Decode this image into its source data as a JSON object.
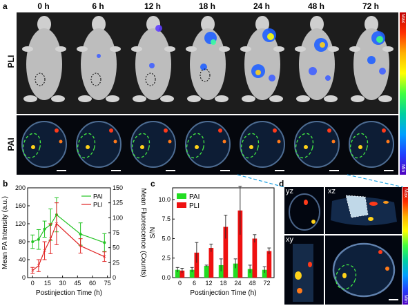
{
  "panels": {
    "a": "a",
    "b": "b",
    "c": "c",
    "d": "d"
  },
  "timepoints": [
    "0 h",
    "6 h",
    "12 h",
    "18 h",
    "24 h",
    "48 h",
    "72 h"
  ],
  "rows": {
    "pli": "PLI",
    "pai": "PAI"
  },
  "colorbar": {
    "max": "Max",
    "min": "Min"
  },
  "panel_d_views": {
    "yz": "yz",
    "xz": "xz",
    "xy": "xy"
  },
  "colors": {
    "pai_green": "#22c322",
    "pli_red": "#e02020",
    "ns_green": "#22dd22",
    "ns_red": "#ee1111",
    "dash_green": "#44ee44",
    "link_blue": "#1ea0e0"
  },
  "chart_data": [
    {
      "type": "line",
      "panel": "b",
      "xlabel": "Postinjection Time (h)",
      "ylabel": "Mean PA Intensity (a.u.)",
      "ylabel_right": "Mean Fluorescence (Counts)",
      "xlim": [
        -5,
        78
      ],
      "ylim": [
        0,
        200
      ],
      "ylim_right": [
        0,
        150
      ],
      "xticks": [
        0,
        15,
        30,
        45,
        60,
        75
      ],
      "yticks": [
        0,
        40,
        80,
        120,
        160,
        200
      ],
      "yticks_right": [
        0,
        25,
        50,
        75,
        100,
        125,
        150
      ],
      "legend_position": "top-right",
      "series": [
        {
          "name": "PAI",
          "axis": "left",
          "x": [
            0,
            6,
            12,
            18,
            24,
            48,
            72
          ],
          "y": [
            80,
            85,
            108,
            118,
            140,
            97,
            78
          ],
          "err": [
            15,
            22,
            18,
            35,
            38,
            25,
            20
          ]
        },
        {
          "name": "PLI",
          "axis": "right",
          "x": [
            0,
            6,
            12,
            18,
            24,
            48,
            72
          ],
          "y": [
            12,
            20,
            45,
            65,
            90,
            53,
            35
          ],
          "err": [
            5,
            10,
            15,
            25,
            35,
            12,
            8
          ]
        }
      ]
    },
    {
      "type": "bar",
      "panel": "c",
      "xlabel": "Postinjection Time (h)",
      "ylabel": "S/N",
      "categories": [
        "0",
        "6",
        "12",
        "18",
        "24",
        "48",
        "72"
      ],
      "ylim": [
        0,
        11.5
      ],
      "yticks": [
        0.0,
        2.5,
        5.0,
        7.5,
        10.0
      ],
      "ytick_labels": [
        "0.0",
        "2.5",
        "5.0",
        "7.5",
        "10.0"
      ],
      "legend_position": "top-left",
      "series": [
        {
          "name": "PAI",
          "values": [
            1.0,
            1.0,
            1.5,
            1.6,
            1.8,
            1.1,
            1.0
          ],
          "err": [
            0.3,
            0.3,
            0.1,
            0.8,
            0.6,
            0.5,
            0.4
          ]
        },
        {
          "name": "PLI",
          "values": [
            0.9,
            3.2,
            3.8,
            6.5,
            8.6,
            5.0,
            3.4
          ],
          "err": [
            0.3,
            1.3,
            0.5,
            1.5,
            3.1,
            0.5,
            0.4
          ]
        }
      ]
    }
  ]
}
